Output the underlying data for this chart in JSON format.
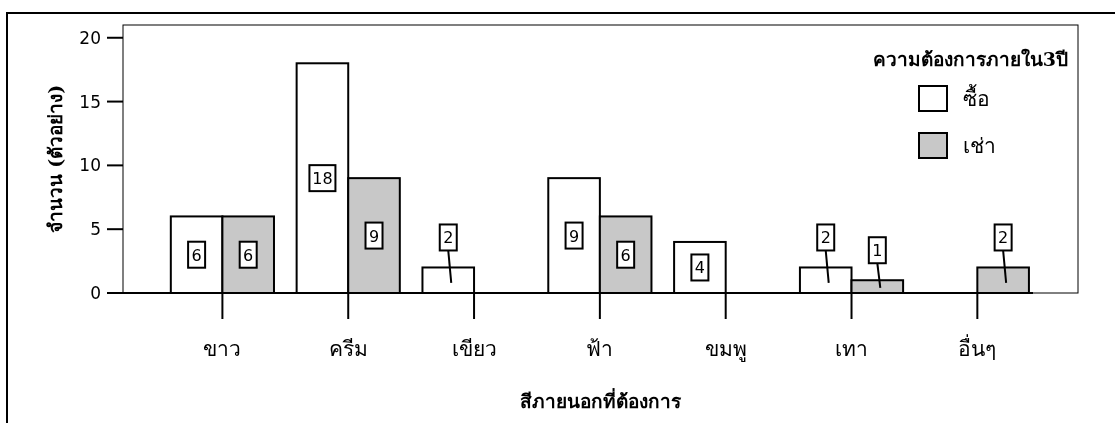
{
  "chart_data": {
    "type": "bar",
    "xlabel": "สีภายนอกที่ต้องการ",
    "ylabel": "จำนวน (ตัวอย่าง)",
    "legend_title": "ความต้องการภายใน3ปี",
    "categories": [
      "ขาว",
      "ครีม",
      "เขียว",
      "ฟ้า",
      "ขมพู",
      "เทา",
      "อื่นๆ"
    ],
    "series": [
      {
        "name": "ซื้อ",
        "color": "#ffffff",
        "values": [
          6,
          18,
          2,
          9,
          4,
          2,
          null
        ]
      },
      {
        "name": "เช่า",
        "color": "#c8c8c8",
        "values": [
          6,
          9,
          null,
          6,
          null,
          1,
          2
        ]
      }
    ],
    "ylim": [
      0,
      21
    ],
    "yticks": [
      0,
      5,
      10,
      15,
      20
    ],
    "grid": false,
    "legend": "top right",
    "data_labels": true
  }
}
